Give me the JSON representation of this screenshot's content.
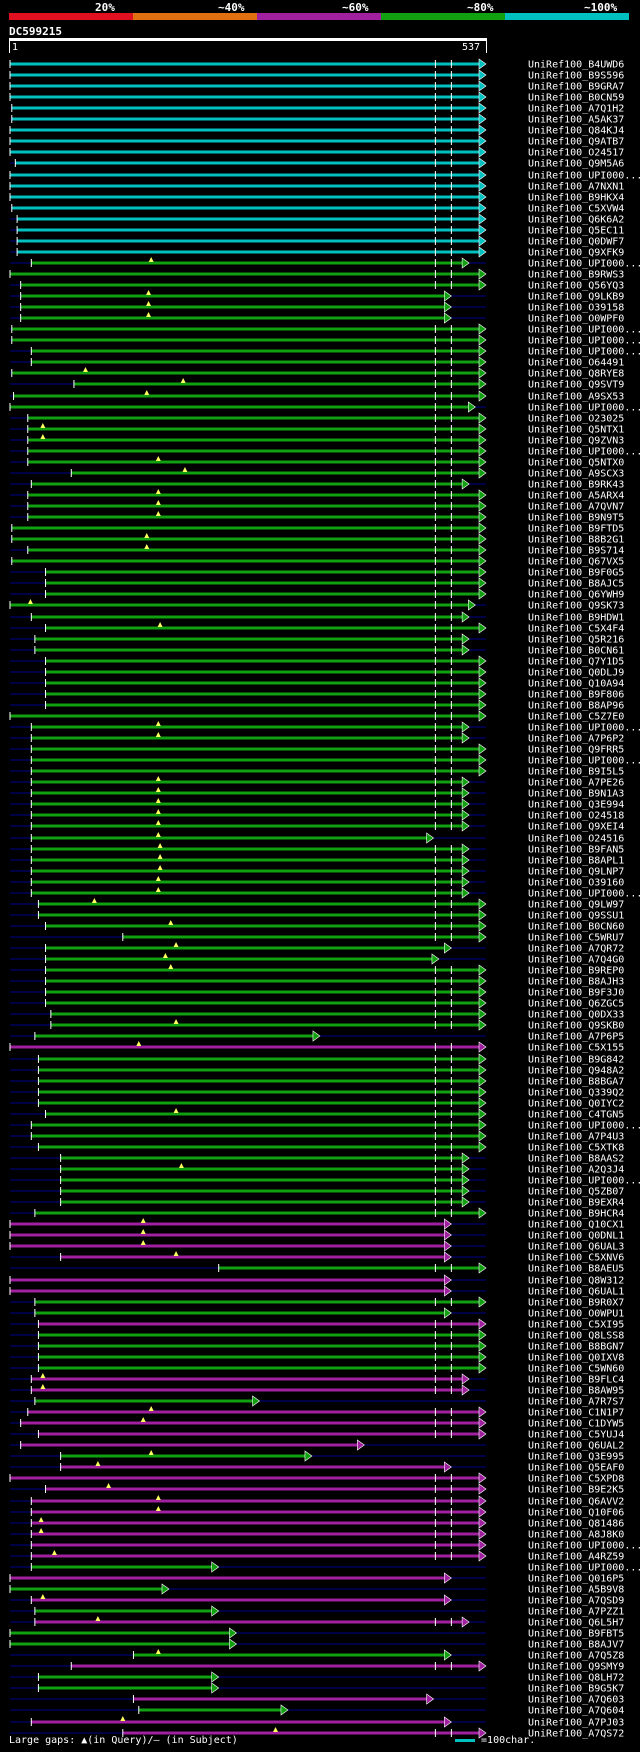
{
  "legend": [
    {
      "label": "20%",
      "color": "#e01020"
    },
    {
      "label": "~40%",
      "color": "#e07010"
    },
    {
      "label": "~60%",
      "color": "#a020a0"
    },
    {
      "label": "~80%",
      "color": "#10a010"
    },
    {
      "label": "~100%",
      "color": "#00c0c0"
    }
  ],
  "query": {
    "id": "DC599215",
    "start": "1",
    "end": "537"
  },
  "footer": {
    "gaps": "Large gaps: ▲(in Query)/– (in Subject)",
    "scale": "=100char."
  },
  "colors": {
    "cyan": "#00c0c0",
    "green": "#10a010",
    "magenta": "#a020a0",
    "background": "#000000",
    "rail": "#00008b"
  },
  "chart_data": {
    "type": "alignment-overview",
    "x_range": [
      1,
      537
    ],
    "x_unit": "query residue",
    "hits": [
      {
        "name": "UniRef100_B4UWD6",
        "start": 1,
        "end": 537,
        "c": "c"
      },
      {
        "name": "UniRef100_B9S596",
        "start": 1,
        "end": 537,
        "c": "c"
      },
      {
        "name": "UniRef100_B9GRA7",
        "start": 1,
        "end": 537,
        "c": "c"
      },
      {
        "name": "UniRef100_B0CN59",
        "start": 1,
        "end": 537,
        "c": "c"
      },
      {
        "name": "UniRef100_A7Q1H2",
        "start": 3,
        "end": 537,
        "c": "c"
      },
      {
        "name": "UniRef100_A5AK37",
        "start": 3,
        "end": 537,
        "c": "c"
      },
      {
        "name": "UniRef100_Q84KJ4",
        "start": 1,
        "end": 537,
        "c": "c"
      },
      {
        "name": "UniRef100_Q9ATB7",
        "start": 1,
        "end": 537,
        "c": "c"
      },
      {
        "name": "UniRef100_O24517",
        "start": 1,
        "end": 537,
        "c": "c"
      },
      {
        "name": "UniRef100_Q9M5A6",
        "start": 7,
        "end": 537,
        "c": "c"
      },
      {
        "name": "UniRef100_UPI000...",
        "start": 1,
        "end": 537,
        "c": "c"
      },
      {
        "name": "UniRef100_A7NXN1",
        "start": 1,
        "end": 537,
        "c": "c"
      },
      {
        "name": "UniRef100_B9HKX4",
        "start": 1,
        "end": 537,
        "c": "c"
      },
      {
        "name": "UniRef100_C5XVW4",
        "start": 3,
        "end": 537,
        "c": "c"
      },
      {
        "name": "UniRef100_Q6K6A2",
        "start": 9,
        "end": 537,
        "c": "c"
      },
      {
        "name": "UniRef100_Q5EC11",
        "start": 9,
        "end": 537,
        "c": "c"
      },
      {
        "name": "UniRef100_Q0DWF7",
        "start": 9,
        "end": 537,
        "c": "c"
      },
      {
        "name": "UniRef100_Q9XFK9",
        "start": 9,
        "end": 537,
        "c": "c"
      },
      {
        "name": "UniRef100_UPI000...",
        "start": 25,
        "end": 518,
        "c": "g",
        "gap": 160
      },
      {
        "name": "UniRef100_B9RWS3",
        "start": 1,
        "end": 537,
        "c": "g"
      },
      {
        "name": "UniRef100_Q56YQ3",
        "start": 13,
        "end": 537,
        "c": "g"
      },
      {
        "name": "UniRef100_Q9LKB9",
        "start": 13,
        "end": 498,
        "c": "g",
        "gap": 157
      },
      {
        "name": "UniRef100_O39158",
        "start": 13,
        "end": 498,
        "c": "g",
        "gap": 157
      },
      {
        "name": "UniRef100_O0WPF0",
        "start": 13,
        "end": 498,
        "c": "g",
        "gap": 157
      },
      {
        "name": "UniRef100_UPI000...",
        "start": 3,
        "end": 537,
        "c": "g"
      },
      {
        "name": "UniRef100_UPI000...",
        "start": 3,
        "end": 537,
        "c": "g"
      },
      {
        "name": "UniRef100_UPI000...",
        "start": 25,
        "end": 537,
        "c": "g"
      },
      {
        "name": "UniRef100_O64491",
        "start": 25,
        "end": 537,
        "c": "g"
      },
      {
        "name": "UniRef100_Q8RYE8",
        "start": 3,
        "end": 537,
        "c": "g",
        "gap": 86
      },
      {
        "name": "UniRef100_Q9SVT9",
        "start": 73,
        "end": 537,
        "c": "g",
        "gap": 196
      },
      {
        "name": "UniRef100_A9SX53",
        "start": 5,
        "end": 537,
        "c": "g",
        "gap": 155
      },
      {
        "name": "UniRef100_UPI000...",
        "start": 1,
        "end": 525,
        "c": "g"
      },
      {
        "name": "UniRef100_O23025",
        "start": 21,
        "end": 537,
        "c": "g"
      },
      {
        "name": "UniRef100_Q5NTX1",
        "start": 21,
        "end": 537,
        "c": "g",
        "gap": 38
      },
      {
        "name": "UniRef100_Q9ZVN3",
        "start": 21,
        "end": 537,
        "c": "g",
        "gap": 38
      },
      {
        "name": "UniRef100_UPI000...",
        "start": 21,
        "end": 537,
        "c": "g"
      },
      {
        "name": "UniRef100_Q5NTX0",
        "start": 21,
        "end": 537,
        "c": "g",
        "gap": 168
      },
      {
        "name": "UniRef100_A9SCX3",
        "start": 70,
        "end": 537,
        "c": "g",
        "gap": 198
      },
      {
        "name": "UniRef100_B9RK43",
        "start": 25,
        "end": 518,
        "c": "g"
      },
      {
        "name": "UniRef100_A5ARX4",
        "start": 21,
        "end": 537,
        "c": "g",
        "gap": 168
      },
      {
        "name": "UniRef100_A7QVN7",
        "start": 21,
        "end": 537,
        "c": "g",
        "gap": 168
      },
      {
        "name": "UniRef100_B9N9T5",
        "start": 21,
        "end": 537,
        "c": "g",
        "gap": 168
      },
      {
        "name": "UniRef100_B9FTD5",
        "start": 3,
        "end": 537,
        "c": "g"
      },
      {
        "name": "UniRef100_B8B2G1",
        "start": 3,
        "end": 537,
        "c": "g",
        "gap": 155
      },
      {
        "name": "UniRef100_B9S714",
        "start": 21,
        "end": 537,
        "c": "g",
        "gap": 155
      },
      {
        "name": "UniRef100_Q67VX5",
        "start": 3,
        "end": 537,
        "c": "g"
      },
      {
        "name": "UniRef100_B9F0G5",
        "start": 41,
        "end": 537,
        "c": "g"
      },
      {
        "name": "UniRef100_B8AJC5",
        "start": 41,
        "end": 537,
        "c": "g"
      },
      {
        "name": "UniRef100_Q6YWH9",
        "start": 41,
        "end": 537,
        "c": "g"
      },
      {
        "name": "UniRef100_Q9SK73",
        "start": 1,
        "end": 525,
        "c": "g",
        "gap": 24
      },
      {
        "name": "UniRef100_B9HDW1",
        "start": 25,
        "end": 518,
        "c": "g"
      },
      {
        "name": "UniRef100_C5X4F4",
        "start": 41,
        "end": 537,
        "c": "g",
        "gap": 170
      },
      {
        "name": "UniRef100_Q5R216",
        "start": 29,
        "end": 518,
        "c": "g"
      },
      {
        "name": "UniRef100_B0CN61",
        "start": 29,
        "end": 518,
        "c": "g"
      },
      {
        "name": "UniRef100_Q7Y1D5",
        "start": 41,
        "end": 537,
        "c": "g"
      },
      {
        "name": "UniRef100_Q0DLJ9",
        "start": 41,
        "end": 537,
        "c": "g"
      },
      {
        "name": "UniRef100_Q10A94",
        "start": 41,
        "end": 537,
        "c": "g"
      },
      {
        "name": "UniRef100_B9F806",
        "start": 41,
        "end": 537,
        "c": "g"
      },
      {
        "name": "UniRef100_B8AP96",
        "start": 41,
        "end": 537,
        "c": "g"
      },
      {
        "name": "UniRef100_C5Z7E0",
        "start": 1,
        "end": 537,
        "c": "g"
      },
      {
        "name": "UniRef100_UPI000...",
        "start": 25,
        "end": 518,
        "c": "g",
        "gap": 168
      },
      {
        "name": "UniRef100_A7P6P2",
        "start": 25,
        "end": 518,
        "c": "g",
        "gap": 168
      },
      {
        "name": "UniRef100_Q9FRR5",
        "start": 25,
        "end": 537,
        "c": "g"
      },
      {
        "name": "UniRef100_UPI000...",
        "start": 25,
        "end": 537,
        "c": "g"
      },
      {
        "name": "UniRef100_B9I5L5",
        "start": 25,
        "end": 537,
        "c": "g"
      },
      {
        "name": "UniRef100_A7PE26",
        "start": 25,
        "end": 518,
        "c": "g",
        "gap": 168
      },
      {
        "name": "UniRef100_B9N1A3",
        "start": 25,
        "end": 518,
        "c": "g",
        "gap": 168
      },
      {
        "name": "UniRef100_Q3E994",
        "start": 25,
        "end": 518,
        "c": "g",
        "gap": 168
      },
      {
        "name": "UniRef100_O24518",
        "start": 25,
        "end": 518,
        "c": "g",
        "gap": 168
      },
      {
        "name": "UniRef100_Q9XEI4",
        "start": 25,
        "end": 518,
        "c": "g",
        "gap": 168
      },
      {
        "name": "UniRef100_O24516",
        "start": 25,
        "end": 478,
        "c": "g",
        "gap": 168
      },
      {
        "name": "UniRef100_B9FAN5",
        "start": 25,
        "end": 518,
        "c": "g",
        "gap": 170
      },
      {
        "name": "UniRef100_B8APL1",
        "start": 25,
        "end": 518,
        "c": "g",
        "gap": 170
      },
      {
        "name": "UniRef100_Q9LNP7",
        "start": 25,
        "end": 518,
        "c": "g",
        "gap": 170
      },
      {
        "name": "UniRef100_O39160",
        "start": 25,
        "end": 518,
        "c": "g",
        "gap": 168
      },
      {
        "name": "UniRef100_UPI000...",
        "start": 25,
        "end": 518,
        "c": "g",
        "gap": 168
      },
      {
        "name": "UniRef100_Q9LW97",
        "start": 33,
        "end": 537,
        "c": "g",
        "gap": 96
      },
      {
        "name": "UniRef100_Q9SSU1",
        "start": 33,
        "end": 537,
        "c": "g"
      },
      {
        "name": "UniRef100_B0CN60",
        "start": 41,
        "end": 537,
        "c": "g",
        "gap": 182
      },
      {
        "name": "UniRef100_C5WRU7",
        "start": 128,
        "end": 537,
        "c": "g"
      },
      {
        "name": "UniRef100_A7QR72",
        "start": 41,
        "end": 498,
        "c": "g",
        "gap": 188
      },
      {
        "name": "UniRef100_A7Q4G0",
        "start": 41,
        "end": 484,
        "c": "g",
        "gap": 176
      },
      {
        "name": "UniRef100_B9REP0",
        "start": 41,
        "end": 537,
        "c": "g",
        "gap": 182
      },
      {
        "name": "UniRef100_B8AJH3",
        "start": 41,
        "end": 537,
        "c": "g"
      },
      {
        "name": "UniRef100_B9F3J0",
        "start": 41,
        "end": 537,
        "c": "g"
      },
      {
        "name": "UniRef100_Q6ZGC5",
        "start": 41,
        "end": 537,
        "c": "g"
      },
      {
        "name": "UniRef100_Q0DX33",
        "start": 47,
        "end": 537,
        "c": "g"
      },
      {
        "name": "UniRef100_Q9SKB0",
        "start": 47,
        "end": 537,
        "c": "g",
        "gap": 188
      },
      {
        "name": "UniRef100_A7P6P5",
        "start": 29,
        "end": 350,
        "c": "g"
      },
      {
        "name": "UniRef100_C5X155",
        "start": 1,
        "end": 537,
        "c": "m",
        "gap": 146
      },
      {
        "name": "UniRef100_B9G842",
        "start": 33,
        "end": 537,
        "c": "g"
      },
      {
        "name": "UniRef100_Q948A2",
        "start": 33,
        "end": 537,
        "c": "g"
      },
      {
        "name": "UniRef100_B8BGA7",
        "start": 33,
        "end": 537,
        "c": "g"
      },
      {
        "name": "UniRef100_Q339Q2",
        "start": 33,
        "end": 537,
        "c": "g"
      },
      {
        "name": "UniRef100_Q0IYC2",
        "start": 33,
        "end": 537,
        "c": "g"
      },
      {
        "name": "UniRef100_C4TGN5",
        "start": 41,
        "end": 537,
        "c": "g",
        "gap": 188
      },
      {
        "name": "UniRef100_UPI000...",
        "start": 25,
        "end": 537,
        "c": "g"
      },
      {
        "name": "UniRef100_A7P4U3",
        "start": 25,
        "end": 537,
        "c": "g"
      },
      {
        "name": "UniRef100_C5XTK8",
        "start": 33,
        "end": 537,
        "c": "g"
      },
      {
        "name": "UniRef100_B8AAS2",
        "start": 58,
        "end": 518,
        "c": "g"
      },
      {
        "name": "UniRef100_A2Q3J4",
        "start": 58,
        "end": 518,
        "c": "g",
        "gap": 194
      },
      {
        "name": "UniRef100_UPI000...",
        "start": 58,
        "end": 518,
        "c": "g"
      },
      {
        "name": "UniRef100_Q5ZB07",
        "start": 58,
        "end": 518,
        "c": "g"
      },
      {
        "name": "UniRef100_B9EXR4",
        "start": 58,
        "end": 518,
        "c": "g"
      },
      {
        "name": "UniRef100_B9HCR4",
        "start": 29,
        "end": 537,
        "c": "g"
      },
      {
        "name": "UniRef100_Q10CX1",
        "start": 1,
        "end": 498,
        "c": "m",
        "gap": 151
      },
      {
        "name": "UniRef100_Q0DNL1",
        "start": 1,
        "end": 498,
        "c": "m",
        "gap": 151
      },
      {
        "name": "UniRef100_Q6UAL3",
        "start": 1,
        "end": 498,
        "c": "m",
        "gap": 151
      },
      {
        "name": "UniRef100_C5XNV6",
        "start": 58,
        "end": 498,
        "c": "m",
        "gap": 188
      },
      {
        "name": "UniRef100_B8AEU5",
        "start": 236,
        "end": 537,
        "c": "g"
      },
      {
        "name": "UniRef100_Q8W312",
        "start": 1,
        "end": 498,
        "c": "m"
      },
      {
        "name": "UniRef100_Q6UAL1",
        "start": 1,
        "end": 498,
        "c": "m"
      },
      {
        "name": "UniRef100_B9R0X7",
        "start": 29,
        "end": 537,
        "c": "g"
      },
      {
        "name": "UniRef100_O0WPU1",
        "start": 29,
        "end": 498,
        "c": "g"
      },
      {
        "name": "UniRef100_C5XI95",
        "start": 33,
        "end": 537,
        "c": "m"
      },
      {
        "name": "UniRef100_Q8LSS8",
        "start": 33,
        "end": 537,
        "c": "g"
      },
      {
        "name": "UniRef100_B8BGN7",
        "start": 33,
        "end": 537,
        "c": "g"
      },
      {
        "name": "UniRef100_Q0IXV8",
        "start": 33,
        "end": 537,
        "c": "g"
      },
      {
        "name": "UniRef100_C5WN60",
        "start": 33,
        "end": 537,
        "c": "g"
      },
      {
        "name": "UniRef100_B9FLC4",
        "start": 25,
        "end": 518,
        "c": "m",
        "gap": 38
      },
      {
        "name": "UniRef100_B8AW95",
        "start": 25,
        "end": 518,
        "c": "m",
        "gap": 38
      },
      {
        "name": "UniRef100_A7R7S7",
        "start": 29,
        "end": 282,
        "c": "g"
      },
      {
        "name": "UniRef100_C1N1P7",
        "start": 21,
        "end": 537,
        "c": "m",
        "gap": 160
      },
      {
        "name": "UniRef100_C1DYW5",
        "start": 13,
        "end": 537,
        "c": "m",
        "gap": 151
      },
      {
        "name": "UniRef100_C5YUJ4",
        "start": 33,
        "end": 537,
        "c": "m"
      },
      {
        "name": "UniRef100_Q6UAL2",
        "start": 13,
        "end": 400,
        "c": "m"
      },
      {
        "name": "UniRef100_Q3E995",
        "start": 58,
        "end": 341,
        "c": "g",
        "gap": 160
      },
      {
        "name": "UniRef100_Q5EAF0",
        "start": 58,
        "end": 498,
        "c": "m",
        "gap": 100
      },
      {
        "name": "UniRef100_C5XPD8",
        "start": 1,
        "end": 537,
        "c": "m"
      },
      {
        "name": "UniRef100_B9E2K5",
        "start": 41,
        "end": 537,
        "c": "m",
        "gap": 112
      },
      {
        "name": "UniRef100_Q6AVV2",
        "start": 25,
        "end": 537,
        "c": "m",
        "gap": 168
      },
      {
        "name": "UniRef100_Q10F06",
        "start": 25,
        "end": 537,
        "c": "m",
        "gap": 168
      },
      {
        "name": "UniRef100_Q81486",
        "start": 25,
        "end": 537,
        "c": "m",
        "gap": 36
      },
      {
        "name": "UniRef100_A8J8K0",
        "start": 25,
        "end": 537,
        "c": "m",
        "gap": 36
      },
      {
        "name": "UniRef100_UPI000...",
        "start": 25,
        "end": 537,
        "c": "m"
      },
      {
        "name": "UniRef100_A4RZ59",
        "start": 25,
        "end": 537,
        "c": "m",
        "gap": 51
      },
      {
        "name": "UniRef100_UPI000...",
        "start": 25,
        "end": 236,
        "c": "g"
      },
      {
        "name": "UniRef100_Q016P5",
        "start": 1,
        "end": 498,
        "c": "m"
      },
      {
        "name": "UniRef100_A5B9V8",
        "start": 1,
        "end": 180,
        "c": "g"
      },
      {
        "name": "UniRef100_A7QSD9",
        "start": 25,
        "end": 498,
        "c": "m",
        "gap": 38
      },
      {
        "name": "UniRef100_A7PZZ1",
        "start": 29,
        "end": 236,
        "c": "g"
      },
      {
        "name": "UniRef100_Q6L5H7",
        "start": 29,
        "end": 518,
        "c": "m",
        "gap": 100
      },
      {
        "name": "UniRef100_B9FBT5",
        "start": 1,
        "end": 256,
        "c": "g"
      },
      {
        "name": "UniRef100_B8AJV7",
        "start": 1,
        "end": 256,
        "c": "g"
      },
      {
        "name": "UniRef100_A7Q5Z8",
        "start": 140,
        "end": 498,
        "c": "g",
        "gap": 168
      },
      {
        "name": "UniRef100_Q9SMY9",
        "start": 70,
        "end": 537,
        "c": "m"
      },
      {
        "name": "UniRef100_Q8LH72",
        "start": 33,
        "end": 236,
        "c": "g"
      },
      {
        "name": "UniRef100_B9G5K7",
        "start": 33,
        "end": 236,
        "c": "g"
      },
      {
        "name": "UniRef100_A7Q603",
        "start": 140,
        "end": 478,
        "c": "m"
      },
      {
        "name": "UniRef100_A7Q604",
        "start": 146,
        "end": 314,
        "c": "g"
      },
      {
        "name": "UniRef100_A7PJ03",
        "start": 25,
        "end": 498,
        "c": "m",
        "gap": 128
      },
      {
        "name": "UniRef100_A7QS72",
        "start": 128,
        "end": 537,
        "c": "m",
        "gap": 300
      }
    ]
  }
}
